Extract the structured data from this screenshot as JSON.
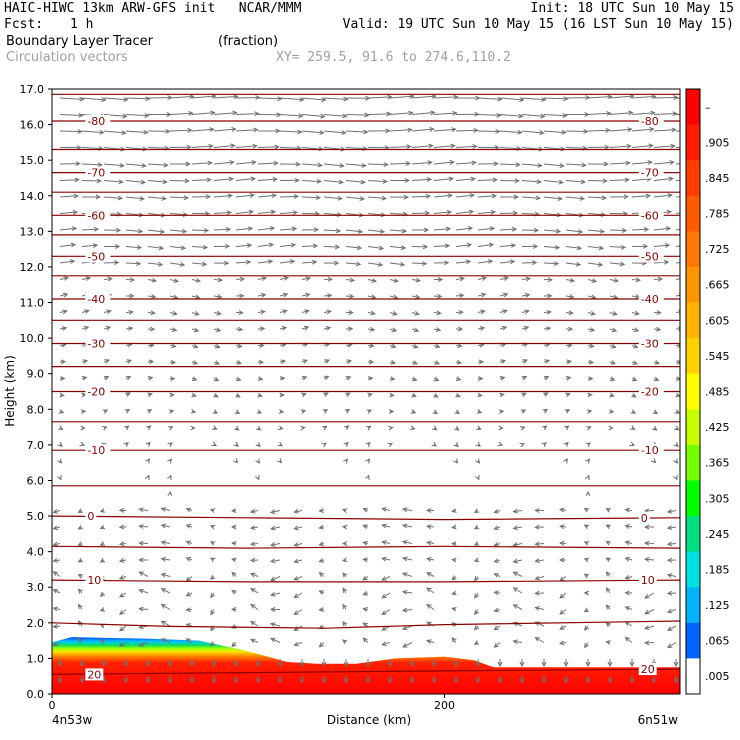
{
  "header": {
    "line1_left": "HAIC-HIWC 13km ARW-GFS init   NCAR/MMM",
    "line1_right": "Init: 18 UTC Sun 10 May 15",
    "fcst_label": "Fcst:",
    "fcst_value": "1 h",
    "valid": "Valid: 19 UTC Sun 10 May 15 (16 LST Sun 10 May 15)",
    "field_name": "Boundary Layer Tracer",
    "field_units": "(fraction)",
    "vector_label": "Circulation vectors",
    "xy": "XY= 259.5, 91.6 to 274.6,110.2"
  },
  "chart_data": {
    "type": "cross-section",
    "xlabel": "Distance (km)",
    "ylabel": "Height (km)",
    "left_endpoint": "4n53w",
    "right_endpoint": "6n51w",
    "xlim": [
      0,
      320
    ],
    "x_ticks": [
      0,
      200
    ],
    "ylim": [
      0,
      17
    ],
    "y_ticks": [
      "0.0",
      "1.0",
      "2.0",
      "3.0",
      "4.0",
      "5.0",
      "6.0",
      "7.0",
      "8.0",
      "9.0",
      "10.0",
      "11.0",
      "12.0",
      "13.0",
      "14.0",
      "15.0",
      "16.0",
      "17.0"
    ],
    "colorbar_labels": [
      "–",
      ".905",
      ".845",
      ".785",
      ".725",
      ".665",
      ".605",
      ".545",
      ".485",
      ".425",
      ".365",
      ".305",
      ".245",
      ".185",
      ".125",
      ".065",
      ".005"
    ],
    "colorbar_colors": [
      "#ff0000",
      "#ff1e00",
      "#ff3c00",
      "#ff5a00",
      "#ff7800",
      "#ff9600",
      "#ffb400",
      "#ffd200",
      "#ffff00",
      "#c8ff00",
      "#78ff00",
      "#00ff00",
      "#00e080",
      "#00e0e0",
      "#00b4ff",
      "#0064ff",
      "#ffffff"
    ],
    "tracer_top_km": [
      [
        0,
        1.45
      ],
      [
        10,
        1.6
      ],
      [
        50,
        1.55
      ],
      [
        75,
        1.5
      ],
      [
        100,
        1.2
      ],
      [
        120,
        0.9
      ],
      [
        135,
        0.85
      ],
      [
        155,
        0.85
      ],
      [
        175,
        1.0
      ],
      [
        200,
        1.05
      ],
      [
        215,
        0.95
      ],
      [
        225,
        0.75
      ],
      [
        320,
        0.75
      ]
    ],
    "temperature_contours": [
      {
        "label": "20",
        "points": [
          [
            0,
            0.55
          ],
          [
            100,
            0.6
          ],
          [
            200,
            0.65
          ],
          [
            320,
            0.7
          ]
        ]
      },
      {
        "label": "",
        "points": [
          [
            0,
            2.0
          ],
          [
            60,
            1.9
          ],
          [
            140,
            1.85
          ],
          [
            200,
            1.95
          ],
          [
            320,
            2.05
          ]
        ]
      },
      {
        "label": "10",
        "points": [
          [
            0,
            3.2
          ],
          [
            100,
            3.15
          ],
          [
            200,
            3.15
          ],
          [
            320,
            3.2
          ]
        ]
      },
      {
        "label": "",
        "points": [
          [
            0,
            4.15
          ],
          [
            100,
            4.1
          ],
          [
            200,
            4.15
          ],
          [
            320,
            4.1
          ]
        ]
      },
      {
        "label": "0",
        "points": [
          [
            0,
            5.0
          ],
          [
            100,
            4.95
          ],
          [
            200,
            4.9
          ],
          [
            320,
            4.95
          ]
        ]
      },
      {
        "label": "",
        "points": [
          [
            0,
            5.85
          ],
          [
            320,
            5.85
          ]
        ]
      },
      {
        "label": "-10",
        "points": [
          [
            0,
            6.85
          ],
          [
            320,
            6.85
          ]
        ]
      },
      {
        "label": "",
        "points": [
          [
            0,
            7.65
          ],
          [
            320,
            7.65
          ]
        ]
      },
      {
        "label": "-20",
        "points": [
          [
            0,
            8.5
          ],
          [
            320,
            8.5
          ]
        ]
      },
      {
        "label": "",
        "points": [
          [
            0,
            9.2
          ],
          [
            320,
            9.2
          ]
        ]
      },
      {
        "label": "-30",
        "points": [
          [
            0,
            9.85
          ],
          [
            320,
            9.85
          ]
        ]
      },
      {
        "label": "",
        "points": [
          [
            0,
            10.5
          ],
          [
            320,
            10.5
          ]
        ]
      },
      {
        "label": "-40",
        "points": [
          [
            0,
            11.1
          ],
          [
            320,
            11.1
          ]
        ]
      },
      {
        "label": "",
        "points": [
          [
            0,
            11.75
          ],
          [
            320,
            11.75
          ]
        ]
      },
      {
        "label": "-50",
        "points": [
          [
            0,
            12.3
          ],
          [
            320,
            12.3
          ]
        ]
      },
      {
        "label": "",
        "points": [
          [
            0,
            12.9
          ],
          [
            320,
            12.9
          ]
        ]
      },
      {
        "label": "-60",
        "points": [
          [
            0,
            13.45
          ],
          [
            320,
            13.45
          ]
        ]
      },
      {
        "label": "",
        "points": [
          [
            0,
            14.1
          ],
          [
            320,
            14.1
          ]
        ]
      },
      {
        "label": "-70",
        "points": [
          [
            0,
            14.65
          ],
          [
            320,
            14.65
          ]
        ]
      },
      {
        "label": "",
        "points": [
          [
            0,
            15.3
          ],
          [
            320,
            15.3
          ]
        ]
      },
      {
        "label": "-80",
        "points": [
          [
            0,
            16.1
          ],
          [
            320,
            16.1
          ]
        ]
      },
      {
        "label": "",
        "points": [
          [
            0,
            16.85
          ],
          [
            320,
            16.85
          ]
        ]
      }
    ]
  }
}
